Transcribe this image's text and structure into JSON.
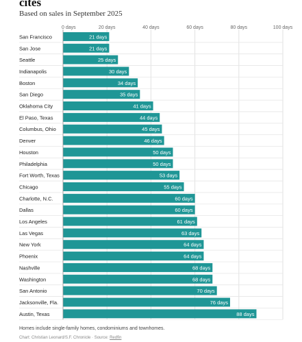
{
  "header": {
    "title": "cites",
    "subtitle": "Based on sales in September 2025"
  },
  "chart_data": {
    "type": "bar",
    "orientation": "horizontal",
    "categories": [
      "San Francisco",
      "San Jose",
      "Seattle",
      "Indianapolis",
      "Boston",
      "San Diego",
      "Oklahoma City",
      "El Paso, Texas",
      "Columbus, Ohio",
      "Denver",
      "Houston",
      "Philadelphia",
      "Fort Worth, Texas",
      "Chicago",
      "Charlotte, N.C.",
      "Dallas",
      "Los Angeles",
      "Las Vegas",
      "New York",
      "Phoenix",
      "Nashville",
      "Washington",
      "San Antonio",
      "Jacksonville, Fla.",
      "Austin, Texas"
    ],
    "values": [
      21,
      21,
      25,
      30,
      34,
      35,
      41,
      44,
      45,
      46,
      50,
      50,
      53,
      55,
      60,
      60,
      61,
      63,
      64,
      64,
      68,
      68,
      70,
      76,
      88
    ],
    "value_labels": [
      "21 days",
      "21 days",
      "25 days",
      "30 days",
      "34 days",
      "35 days",
      "41 days",
      "44 days",
      "45 days",
      "46 days",
      "50 days",
      "50 days",
      "53 days",
      "55 days",
      "60 days",
      "60 days",
      "61 days",
      "63 days",
      "64 days",
      "64 days",
      "68 days",
      "68 days",
      "70 days",
      "76 days",
      "88 days"
    ],
    "xlim": [
      0,
      100
    ],
    "x_ticks": [
      0,
      20,
      40,
      60,
      80,
      100
    ],
    "x_tick_labels": [
      "0 days",
      "20 days",
      "40 days",
      "60 days",
      "80 days",
      "100 days"
    ],
    "grid": true,
    "bar_color": "#1f9696"
  },
  "footer": {
    "note": "Homes include single-family homes, condominiums and townhomes.",
    "credit_prefix": "Chart: Christian Leonard/S.F. Chronicle · Source: ",
    "credit_link": "Redfin"
  }
}
